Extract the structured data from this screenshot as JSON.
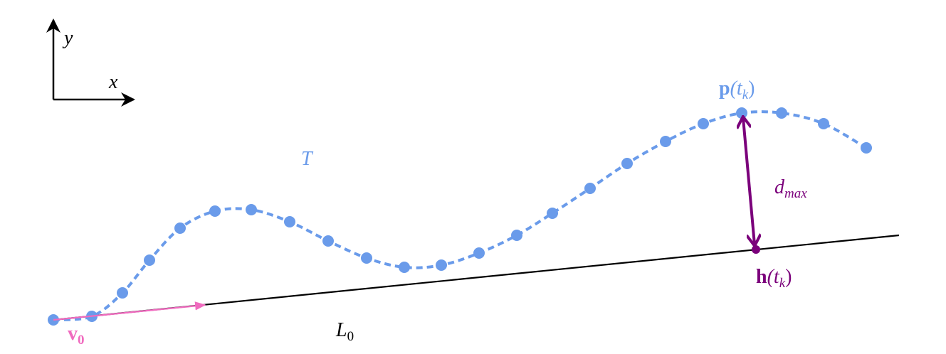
{
  "axes": {
    "y_label": "y",
    "x_label": "x"
  },
  "labels": {
    "trajectory": "T",
    "point": {
      "base": "p",
      "open": "(t",
      "sub": "k",
      "close": ")"
    },
    "distance": {
      "base": "d",
      "sub": "max"
    },
    "projection": {
      "base": "h",
      "open": "(t",
      "sub": "k",
      "close": ")"
    },
    "velocity": {
      "base": "v",
      "sub": "0"
    },
    "line": {
      "base": "L",
      "sub": "0"
    }
  }
}
